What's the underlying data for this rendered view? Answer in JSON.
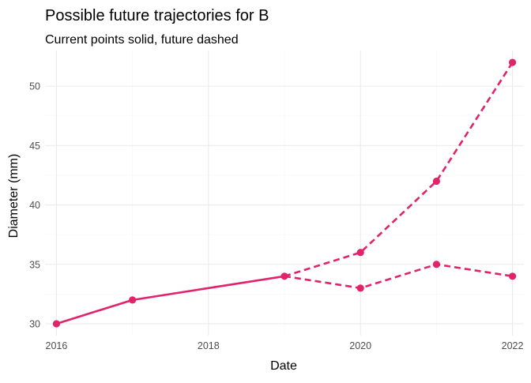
{
  "chart_data": {
    "type": "line",
    "title": "Possible future trajectories for B",
    "subtitle": "Current points solid, future dashed",
    "xlabel": "Date",
    "ylabel": "Diameter (mm)",
    "xlim": [
      2015.85,
      2022.15
    ],
    "ylim": [
      29.0,
      53.0
    ],
    "x_ticks": [
      2016,
      2018,
      2020,
      2022
    ],
    "y_ticks": [
      30,
      35,
      40,
      45,
      50
    ],
    "grid": true,
    "legend": "none",
    "color": "#e0236a",
    "series": [
      {
        "style": "solid",
        "x": [
          2016,
          2017,
          2018,
          2019
        ],
        "y": [
          30,
          32,
          33,
          34
        ]
      },
      {
        "style": "dashed",
        "x": [
          2019,
          2020,
          2021,
          2022
        ],
        "y": [
          34,
          36,
          42,
          52
        ]
      },
      {
        "style": "dashed",
        "x": [
          2019,
          2020,
          2021,
          2022
        ],
        "y": [
          34,
          33,
          35,
          34
        ]
      }
    ],
    "points": [
      {
        "x": 2016,
        "y": 30
      },
      {
        "x": 2017,
        "y": 32
      },
      {
        "x": 2019,
        "y": 34
      },
      {
        "x": 2020,
        "y": 36
      },
      {
        "x": 2020,
        "y": 33
      },
      {
        "x": 2021,
        "y": 42
      },
      {
        "x": 2021,
        "y": 35
      },
      {
        "x": 2022,
        "y": 52
      },
      {
        "x": 2022,
        "y": 34
      }
    ]
  }
}
